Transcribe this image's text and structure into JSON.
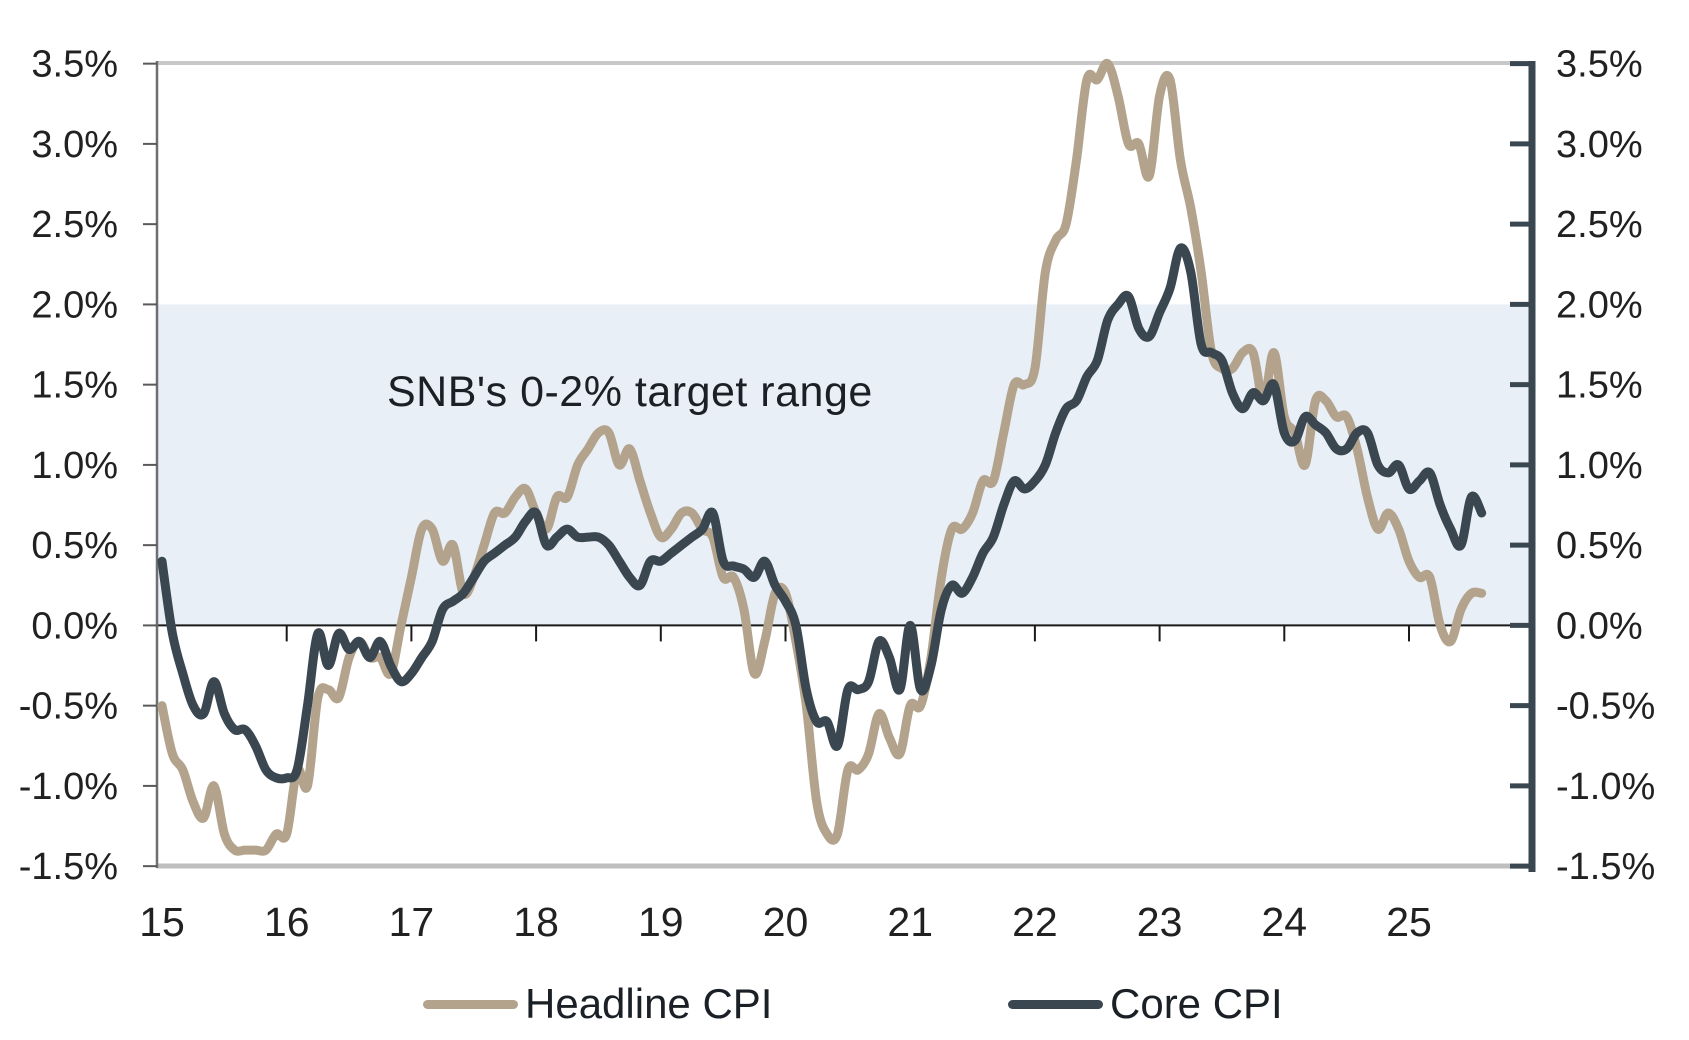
{
  "chart_data": {
    "type": "line",
    "title": "",
    "x_unit": "months",
    "x_start": "2015-01",
    "x_end": "2025-08",
    "x_tick_labels": [
      "15",
      "16",
      "17",
      "18",
      "19",
      "20",
      "21",
      "22",
      "23",
      "24",
      "25"
    ],
    "y_tick_labels": [
      "3.5%",
      "3.0%",
      "2.5%",
      "2.0%",
      "1.5%",
      "1.0%",
      "0.5%",
      "0.0%",
      "-0.5%",
      "-1.0%",
      "-1.5%"
    ],
    "y_tick_values": [
      3.5,
      3.0,
      2.5,
      2.0,
      1.5,
      1.0,
      0.5,
      0.0,
      -0.5,
      -1.0,
      -1.5
    ],
    "ylim": [
      -1.5,
      3.5
    ],
    "grid": "off",
    "legend_position": "bottom",
    "target_band": {
      "label": "SNB's 0-2% target range",
      "from": 0,
      "to": 2,
      "color": "#E8EFF7"
    },
    "series": [
      {
        "name": "Headline CPI",
        "color": "#B3A38C",
        "values": [
          -0.5,
          -0.8,
          -0.9,
          -1.1,
          -1.2,
          -1.0,
          -1.3,
          -1.4,
          -1.4,
          -1.4,
          -1.4,
          -1.3,
          -1.3,
          -0.9,
          -1.0,
          -0.45,
          -0.4,
          -0.45,
          -0.2,
          -0.1,
          -0.2,
          -0.2,
          -0.3,
          0.0,
          0.3,
          0.6,
          0.6,
          0.4,
          0.5,
          0.2,
          0.3,
          0.5,
          0.7,
          0.7,
          0.8,
          0.85,
          0.7,
          0.6,
          0.8,
          0.8,
          1.0,
          1.1,
          1.2,
          1.2,
          1.0,
          1.1,
          0.9,
          0.7,
          0.55,
          0.6,
          0.7,
          0.7,
          0.6,
          0.55,
          0.3,
          0.3,
          0.1,
          -0.3,
          -0.1,
          0.2,
          0.2,
          -0.1,
          -0.5,
          -1.1,
          -1.3,
          -1.3,
          -0.9,
          -0.9,
          -0.8,
          -0.55,
          -0.7,
          -0.8,
          -0.5,
          -0.5,
          -0.2,
          0.3,
          0.6,
          0.6,
          0.7,
          0.9,
          0.9,
          1.2,
          1.5,
          1.5,
          1.6,
          2.2,
          2.4,
          2.5,
          2.9,
          3.4,
          3.4,
          3.5,
          3.3,
          3.0,
          3.0,
          2.8,
          3.3,
          3.4,
          2.9,
          2.6,
          2.2,
          1.7,
          1.6,
          1.6,
          1.7,
          1.7,
          1.4,
          1.7,
          1.3,
          1.2,
          1.0,
          1.4,
          1.4,
          1.3,
          1.3,
          1.1,
          0.8,
          0.6,
          0.7,
          0.6,
          0.4,
          0.3,
          0.3,
          0.0,
          -0.1,
          0.1,
          0.2,
          0.2
        ]
      },
      {
        "name": "Core CPI",
        "color": "#3A4750",
        "values": [
          0.4,
          -0.05,
          -0.3,
          -0.5,
          -0.55,
          -0.35,
          -0.55,
          -0.65,
          -0.65,
          -0.75,
          -0.9,
          -0.95,
          -0.95,
          -0.9,
          -0.5,
          -0.05,
          -0.25,
          -0.05,
          -0.15,
          -0.1,
          -0.2,
          -0.1,
          -0.25,
          -0.35,
          -0.3,
          -0.2,
          -0.1,
          0.1,
          0.15,
          0.2,
          0.3,
          0.4,
          0.45,
          0.5,
          0.55,
          0.65,
          0.7,
          0.5,
          0.55,
          0.6,
          0.55,
          0.55,
          0.55,
          0.5,
          0.4,
          0.3,
          0.25,
          0.4,
          0.4,
          0.45,
          0.5,
          0.55,
          0.6,
          0.7,
          0.4,
          0.37,
          0.35,
          0.3,
          0.4,
          0.25,
          0.15,
          0.0,
          -0.4,
          -0.6,
          -0.6,
          -0.75,
          -0.4,
          -0.4,
          -0.35,
          -0.1,
          -0.2,
          -0.4,
          0.0,
          -0.4,
          -0.25,
          0.1,
          0.25,
          0.2,
          0.3,
          0.45,
          0.55,
          0.75,
          0.9,
          0.85,
          0.9,
          1.0,
          1.2,
          1.35,
          1.4,
          1.55,
          1.65,
          1.9,
          2.0,
          2.05,
          1.85,
          1.8,
          1.95,
          2.1,
          2.35,
          2.2,
          1.75,
          1.7,
          1.65,
          1.45,
          1.35,
          1.45,
          1.4,
          1.5,
          1.2,
          1.15,
          1.3,
          1.25,
          1.2,
          1.1,
          1.1,
          1.2,
          1.2,
          1.0,
          0.95,
          1.0,
          0.85,
          0.9,
          0.95,
          0.75,
          0.6,
          0.5,
          0.8,
          0.7
        ]
      }
    ],
    "axis_colors": {
      "top_border": "#C8C8C8",
      "bottom_border": "#BFBFBF",
      "left_spine": "#6F6F6F",
      "right_spine": "#3A4750",
      "zero_line": "#1a1a1a",
      "left_tick": "#595959",
      "label": "#212121"
    }
  },
  "legend": {
    "items": [
      {
        "label": "Headline CPI"
      },
      {
        "label": "Core CPI"
      }
    ]
  }
}
